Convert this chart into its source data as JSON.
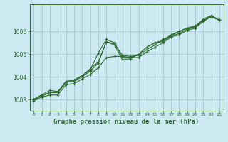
{
  "background_color": "#cce8f0",
  "grid_color": "#9bbfcc",
  "line_color": "#2d6a2d",
  "xlabel": "Graphe pression niveau de la mer (hPa)",
  "ylim": [
    1002.5,
    1007.2
  ],
  "xlim": [
    -0.5,
    23.5
  ],
  "yticks": [
    1003,
    1004,
    1005,
    1006
  ],
  "xticks": [
    0,
    1,
    2,
    3,
    4,
    5,
    6,
    7,
    8,
    9,
    10,
    11,
    12,
    13,
    14,
    15,
    16,
    17,
    18,
    19,
    20,
    21,
    22,
    23
  ],
  "series": [
    [
      1003.0,
      1003.2,
      1003.3,
      1003.35,
      1003.75,
      1003.85,
      1004.05,
      1004.35,
      1004.65,
      1005.55,
      1005.45,
      1004.95,
      1004.9,
      1004.95,
      1005.2,
      1005.4,
      1005.65,
      1005.8,
      1005.9,
      1006.1,
      1006.2,
      1006.55,
      1006.7,
      1006.5
    ],
    [
      1003.0,
      1003.2,
      1003.4,
      1003.35,
      1003.8,
      1003.85,
      1004.05,
      1004.3,
      1005.05,
      1005.65,
      1005.5,
      1004.85,
      1004.85,
      1005.0,
      1005.3,
      1005.5,
      1005.6,
      1005.85,
      1006.0,
      1006.15,
      1006.25,
      1006.5,
      1006.65,
      1006.5
    ],
    [
      1003.0,
      1003.15,
      1003.3,
      1003.3,
      1003.75,
      1003.8,
      1004.0,
      1004.25,
      1004.6,
      1005.55,
      1005.4,
      1004.75,
      1004.8,
      1005.0,
      1005.3,
      1005.5,
      1005.55,
      1005.8,
      1006.0,
      1006.15,
      1006.2,
      1006.45,
      1006.7,
      1006.5
    ],
    [
      1002.95,
      1003.1,
      1003.2,
      1003.2,
      1003.65,
      1003.7,
      1003.9,
      1004.1,
      1004.4,
      1004.85,
      1004.9,
      1004.9,
      1004.85,
      1004.85,
      1005.1,
      1005.3,
      1005.5,
      1005.75,
      1005.85,
      1006.05,
      1006.15,
      1006.45,
      1006.65,
      1006.5
    ]
  ]
}
